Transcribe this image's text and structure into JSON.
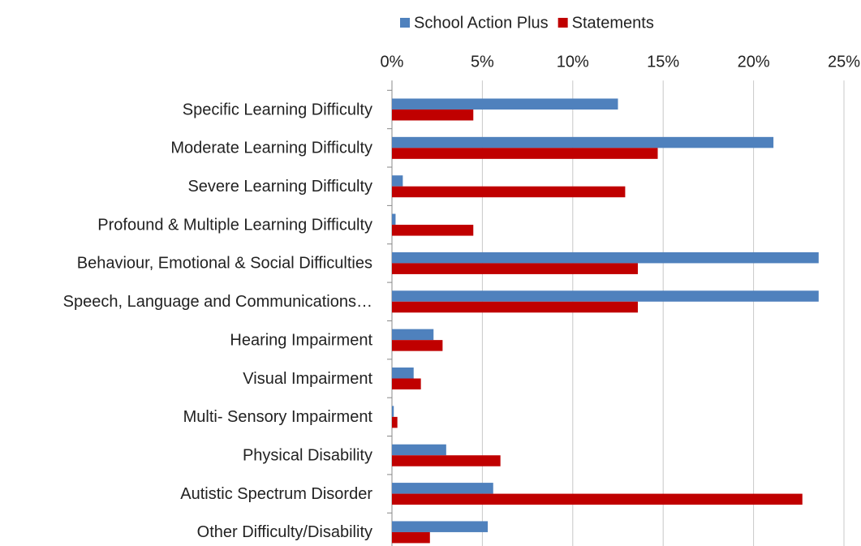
{
  "chart_data": {
    "type": "bar",
    "orientation": "horizontal",
    "categories": [
      "Specific Learning Difficulty",
      "Moderate Learning Difficulty",
      "Severe Learning Difficulty",
      "Profound & Multiple Learning Difficulty",
      "Behaviour, Emotional & Social Difficulties",
      "Speech, Language and Communications…",
      "Hearing Impairment",
      "Visual Impairment",
      "Multi- Sensory Impairment",
      "Physical Disability",
      "Autistic Spectrum Disorder",
      "Other Difficulty/Disability"
    ],
    "series": [
      {
        "name": "School Action Plus",
        "color": "#4f81bd",
        "values": [
          12.5,
          21.1,
          0.6,
          0.2,
          23.6,
          23.6,
          2.3,
          1.2,
          0.1,
          3.0,
          5.6,
          5.3
        ]
      },
      {
        "name": "Statements",
        "color": "#c00000",
        "values": [
          4.5,
          14.7,
          12.9,
          4.5,
          13.6,
          13.6,
          2.8,
          1.6,
          0.3,
          6.0,
          22.7,
          2.1
        ]
      }
    ],
    "xlim": [
      0,
      25
    ],
    "xticks": [
      {
        "value": 0,
        "label": "0%"
      },
      {
        "value": 5,
        "label": "5%"
      },
      {
        "value": 10,
        "label": "10%"
      },
      {
        "value": 15,
        "label": "15%"
      },
      {
        "value": 20,
        "label": "20%"
      },
      {
        "value": 25,
        "label": "25%"
      }
    ],
    "grid": true,
    "legend": "top"
  }
}
